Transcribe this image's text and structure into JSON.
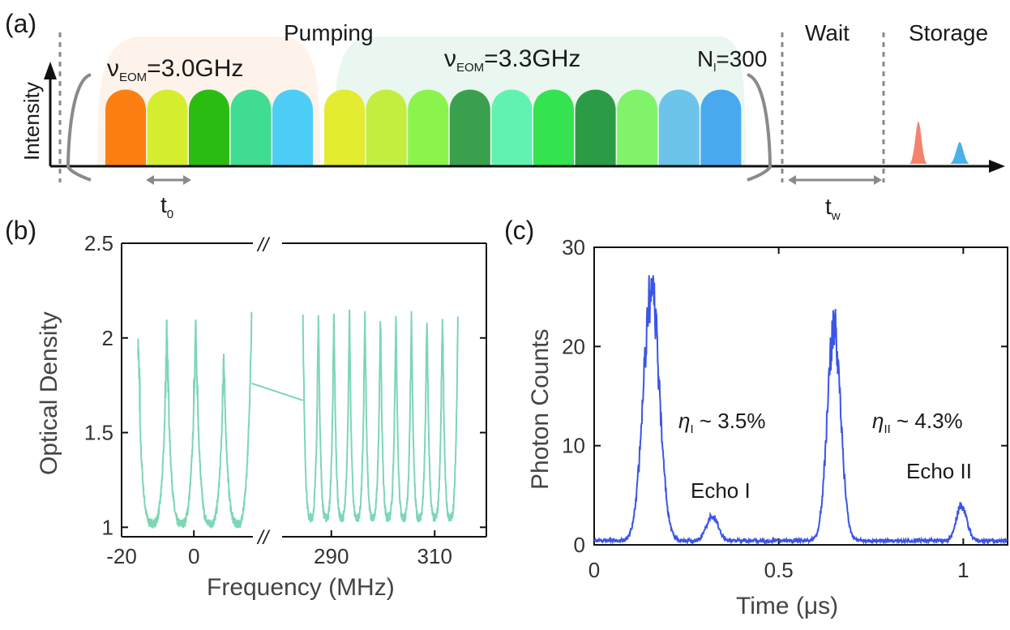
{
  "panel_a": {
    "label": "(a)",
    "y_axis_label": "Intensity",
    "sections": {
      "pumping": "Pumping",
      "wait": "Wait",
      "storage": "Storage"
    },
    "group1": {
      "nu": "ν",
      "sub": "EOM",
      "value": "=3.0GHz",
      "count": 5
    },
    "group2": {
      "nu": "ν",
      "sub": "EOM",
      "value": "=3.3GHz",
      "count": 10
    },
    "repeat": {
      "n": "N",
      "sub": "l",
      "value": "=300"
    },
    "t0": {
      "t": "t",
      "sub": "0"
    },
    "tw": {
      "t": "t",
      "sub": "w"
    },
    "pulse_colors": [
      "#fb7f12",
      "#d4ee2f",
      "#2bbc12",
      "#3fdc91",
      "#4ccdf5",
      "#e4ec30",
      "#c4ee3f",
      "#8af44c",
      "#3aa04e",
      "#5ff2b0",
      "#35e24f",
      "#2b9c45",
      "#80f36a",
      "#6cc4ea",
      "#4aa9ee"
    ],
    "echo_colors": [
      "#f4836d",
      "#4ab0ea"
    ],
    "envelope_colors": [
      "#fdf3ea",
      "#eaf7f0"
    ]
  },
  "panel_b": {
    "label": "(b)",
    "chart_data": {
      "type": "line",
      "xlabel": "Frequency (MHz)",
      "ylabel": "Optical Density",
      "ylim": [
        0.95,
        2.5
      ],
      "yticks": [
        1,
        1.5,
        2,
        2.5
      ],
      "ytick_labels": [
        "1",
        "1.5",
        "2",
        "2.5"
      ],
      "x_segments": [
        {
          "range": [
            -20,
            17
          ],
          "ticks": [
            -20,
            0
          ]
        },
        {
          "range": [
            280,
            320
          ],
          "ticks": [
            290,
            310
          ]
        }
      ],
      "axis_break": "//",
      "color": "#7dd6b4",
      "series": [
        {
          "segment": 0,
          "comb_center_freqs": [
            -11.5,
            -3.5,
            4.5,
            12
          ],
          "edge_od": [
            1.88,
            1.95,
            2.0,
            2.07
          ],
          "floor_od": 1.02,
          "max_od": 2.18
        },
        {
          "segment": 1,
          "comb_center_freqs": [
            286,
            289,
            292,
            295,
            298,
            301,
            304,
            307,
            310,
            313
          ],
          "edge_od": 2.08,
          "floor_od": 1.05,
          "max_od": 2.18
        }
      ]
    }
  },
  "panel_c": {
    "label": "(c)",
    "chart_data": {
      "type": "line",
      "xlabel": "Time (μs)",
      "ylabel": "Photon Counts",
      "xlim": [
        0,
        1.12
      ],
      "ylim": [
        0,
        30
      ],
      "xticks": [
        0,
        0.5,
        1
      ],
      "xtick_labels": [
        "0",
        "0.5",
        "1"
      ],
      "yticks": [
        0,
        10,
        20,
        30
      ],
      "ytick_labels": [
        "0",
        "10",
        "20",
        "30"
      ],
      "color": "#3b55e6",
      "peaks": [
        {
          "t": 0.155,
          "height": 25,
          "width": 0.022
        },
        {
          "t": 0.32,
          "height": 2.4,
          "width": 0.016
        },
        {
          "t": 0.65,
          "height": 21.5,
          "width": 0.018
        },
        {
          "t": 0.995,
          "height": 3.6,
          "width": 0.014
        }
      ],
      "annotations": [
        {
          "eta": "η",
          "sub": "I",
          "text": " ~ 3.5%",
          "x": 0.23,
          "y": 12.3
        },
        {
          "eta": "η",
          "sub": "II",
          "text": " ~ 4.3%",
          "x": 0.76,
          "y": 12.3
        },
        {
          "text": "Echo I",
          "x": 0.26,
          "y": 5.2
        },
        {
          "text": "Echo II",
          "x": 0.84,
          "y": 7.0
        }
      ]
    }
  }
}
